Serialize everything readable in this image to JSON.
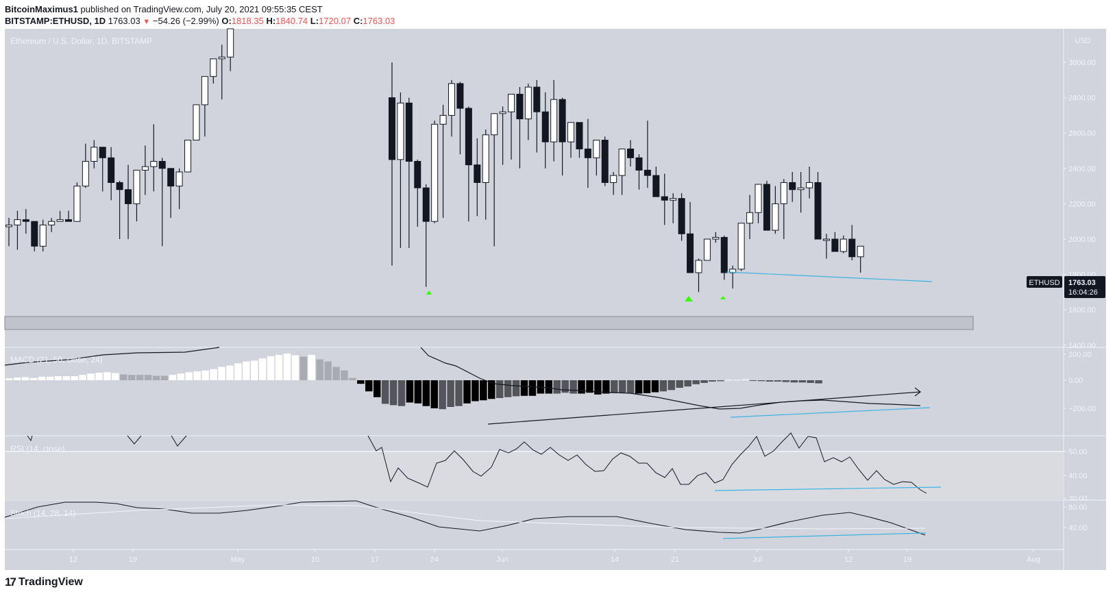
{
  "header": {
    "author": "BitcoinMaximus1",
    "published_text": "published on TradingView.com, July 20, 2021 09:55:35 CEST",
    "symbol": "BITSTAMP:ETHUSD, 1D",
    "last": "1763.03",
    "change": "−54.26 (−2.99%)",
    "o_label": "O:",
    "o": "1818.35",
    "h_label": "H:",
    "h": "1840.74",
    "l_label": "L:",
    "l": "1720.07",
    "c_label": "C:",
    "c": "1763.03"
  },
  "main_pane": {
    "title": "Ethereum / U.S. Dollar, 1D, BITSTAMP",
    "currency": "USD",
    "price_ticks": [
      "3000.00",
      "2800.00",
      "2600.00",
      "2400.00",
      "2200.00",
      "2000.00",
      "1800.00",
      "1600.00",
      "1400.00"
    ],
    "symbol_tag": "ETHUSD",
    "last_price_tag": "1763.03",
    "countdown": "16:04:26"
  },
  "macd_pane": {
    "title": "MACD (21, 50, close, 24)",
    "ticks": [
      "200.00",
      "0.00",
      "−200.00"
    ]
  },
  "rsi_pane": {
    "title": "RSI (14, close)",
    "ticks": [
      "50.00",
      "40.00",
      "30.00"
    ]
  },
  "stoch_pane": {
    "title": "Stoch (14, 28, 14)",
    "ticks": [
      "80.00",
      "40.00"
    ]
  },
  "x_axis": {
    "labels": [
      "12",
      "19",
      "May",
      "10",
      "17",
      "24",
      "Jun",
      "14",
      "21",
      "Jul",
      "12",
      "19",
      "Aug"
    ]
  },
  "footer": {
    "brand": "TradingView"
  },
  "colors": {
    "background": "#d1d4dc",
    "up": "#ffffff",
    "down": "#131722",
    "trendline": "#3bb3e4",
    "marker": "#33ff00",
    "neg_text": "#ef5350"
  },
  "chart_data": {
    "type": "candlestick",
    "title": "Ethereum / U.S. Dollar, 1D, BITSTAMP",
    "ylabel": "USD",
    "ylim": [
      1400,
      3100
    ],
    "x_start_date": "2021-04-05",
    "ohlc": [
      [
        2070,
        2120,
        1960,
        2080
      ],
      [
        2080,
        2160,
        1940,
        2110
      ],
      [
        2110,
        2170,
        2030,
        2100
      ],
      [
        2100,
        2100,
        1930,
        1960
      ],
      [
        1960,
        2110,
        1930,
        2080
      ],
      [
        2080,
        2120,
        2040,
        2100
      ],
      [
        2100,
        2160,
        2100,
        2110
      ],
      [
        2110,
        2160,
        2100,
        2100
      ],
      [
        2100,
        2320,
        2100,
        2300
      ],
      [
        2300,
        2540,
        2290,
        2440
      ],
      [
        2440,
        2560,
        2400,
        2520
      ],
      [
        2520,
        2520,
        2270,
        2460
      ],
      [
        2460,
        2520,
        2220,
        2320
      ],
      [
        2320,
        2330,
        2000,
        2280
      ],
      [
        2280,
        2420,
        2000,
        2200
      ],
      [
        2200,
        2340,
        2100,
        2390
      ],
      [
        2390,
        2530,
        2250,
        2410
      ],
      [
        2410,
        2650,
        2270,
        2440
      ],
      [
        2440,
        2460,
        1960,
        2400
      ],
      [
        2400,
        2400,
        2120,
        2300
      ],
      [
        2300,
        2400,
        2170,
        2380
      ],
      [
        2380,
        2550,
        2380,
        2560
      ],
      [
        2560,
        2680,
        2560,
        2760
      ],
      [
        2760,
        2820,
        2580,
        2920
      ],
      [
        2920,
        3000,
        2880,
        3020
      ],
      [
        3020,
        3100,
        2790,
        3030
      ],
      [
        3030,
        3100,
        2950,
        3200
      ]
    ],
    "ohlc_may_jul": [
      [
        2800,
        3000,
        1850,
        2450
      ],
      [
        2450,
        2830,
        1950,
        2770
      ],
      [
        2770,
        2800,
        1950,
        2440
      ],
      [
        2440,
        2450,
        2070,
        2290
      ],
      [
        2290,
        2310,
        1730,
        2100
      ],
      [
        2100,
        2670,
        2090,
        2650
      ],
      [
        2650,
        2760,
        2120,
        2700
      ],
      [
        2700,
        2900,
        2580,
        2880
      ],
      [
        2880,
        2890,
        2480,
        2740
      ],
      [
        2740,
        2750,
        2100,
        2420
      ],
      [
        2420,
        2570,
        2130,
        2320
      ],
      [
        2320,
        2620,
        2110,
        2590
      ],
      [
        2590,
        2620,
        1960,
        2710
      ],
      [
        2710,
        2750,
        2420,
        2720
      ],
      [
        2720,
        2800,
        2450,
        2820
      ],
      [
        2820,
        2860,
        2400,
        2680
      ],
      [
        2680,
        2880,
        2560,
        2860
      ],
      [
        2860,
        2900,
        2490,
        2720
      ],
      [
        2720,
        2830,
        2400,
        2550
      ],
      [
        2550,
        2900,
        2440,
        2790
      ],
      [
        2790,
        2800,
        2360,
        2550
      ],
      [
        2550,
        2600,
        2460,
        2660
      ],
      [
        2660,
        2660,
        2460,
        2510
      ],
      [
        2510,
        2680,
        2290,
        2460
      ],
      [
        2460,
        2540,
        2360,
        2560
      ],
      [
        2560,
        2580,
        2300,
        2320
      ],
      [
        2320,
        2380,
        2250,
        2360
      ],
      [
        2360,
        2450,
        2250,
        2510
      ],
      [
        2510,
        2560,
        2410,
        2460
      ],
      [
        2460,
        2480,
        2280,
        2390
      ],
      [
        2390,
        2670,
        2290,
        2360
      ],
      [
        2360,
        2410,
        2290,
        2240
      ],
      [
        2240,
        2370,
        2080,
        2220
      ],
      [
        2220,
        2260,
        2090,
        2230
      ],
      [
        2230,
        2260,
        1990,
        2030
      ],
      [
        2030,
        2210,
        1850,
        1810
      ],
      [
        1810,
        1890,
        1700,
        1880
      ],
      [
        1880,
        1990,
        1920,
        2000
      ],
      [
        2000,
        2040,
        1980,
        2010
      ],
      [
        2010,
        2020,
        1770,
        1810
      ],
      [
        1810,
        1850,
        1720,
        1830
      ],
      [
        1830,
        2090,
        1820,
        2090
      ],
      [
        2090,
        2250,
        2000,
        2150
      ],
      [
        2150,
        2310,
        2090,
        2310
      ],
      [
        2310,
        2330,
        2060,
        2050
      ],
      [
        2050,
        2300,
        2030,
        2200
      ],
      [
        2200,
        2340,
        2000,
        2320
      ],
      [
        2320,
        2380,
        2210,
        2280
      ],
      [
        2280,
        2380,
        2150,
        2290
      ],
      [
        2290,
        2410,
        2230,
        2320
      ],
      [
        2320,
        2380,
        2140,
        2000
      ],
      [
        2000,
        2030,
        1890,
        2000
      ],
      [
        2000,
        2040,
        1940,
        1930
      ],
      [
        1930,
        2020,
        1920,
        2000
      ],
      [
        2000,
        2080,
        1880,
        1900
      ],
      [
        1900,
        1920,
        1810,
        1960
      ]
    ],
    "trendlines": [
      {
        "pane": "price",
        "from": [
          "2021-06-26",
          1820
        ],
        "to": [
          "2021-07-20",
          1760
        ],
        "color": "#3bb3e4"
      },
      {
        "pane": "macd",
        "from": [
          "2021-06-26",
          -200
        ],
        "to": [
          "2021-07-20",
          -165
        ],
        "color": "#3bb3e4"
      },
      {
        "pane": "macd",
        "from": [
          "2021-05-29",
          -240
        ],
        "to": [
          "2021-07-19",
          -60
        ],
        "color": "#131722"
      },
      {
        "pane": "rsi",
        "from": [
          "2021-06-26",
          33.5
        ],
        "to": [
          "2021-07-21",
          35.5
        ],
        "color": "#3bb3e4"
      },
      {
        "pane": "stoch",
        "from": [
          "2021-06-26",
          18
        ],
        "to": [
          "2021-07-20",
          28
        ],
        "color": "#3bb3e4"
      }
    ],
    "markers": [
      {
        "date": "2021-05-23",
        "price": 1730,
        "shape": "triangle-up",
        "color": "#33ff00"
      },
      {
        "date": "2021-06-22",
        "price": 1700,
        "shape": "triangle-up",
        "color": "#33ff00"
      },
      {
        "date": "2021-06-26",
        "price": 1720,
        "shape": "triangle-up",
        "color": "#33ff00"
      }
    ],
    "support_zone": [
      1500,
      1560
    ],
    "indicators": {
      "macd": {
        "params": "21, 50, close, 24",
        "ylim": [
          -300,
          230
        ]
      },
      "rsi": {
        "params": "14, close",
        "ylim": [
          30,
          57
        ],
        "levels": [
          50
        ]
      },
      "stoch": {
        "params": "14, 28, 14",
        "ylim": [
          0,
          100
        ]
      }
    },
    "grid": false,
    "legend_position": "top-left"
  }
}
